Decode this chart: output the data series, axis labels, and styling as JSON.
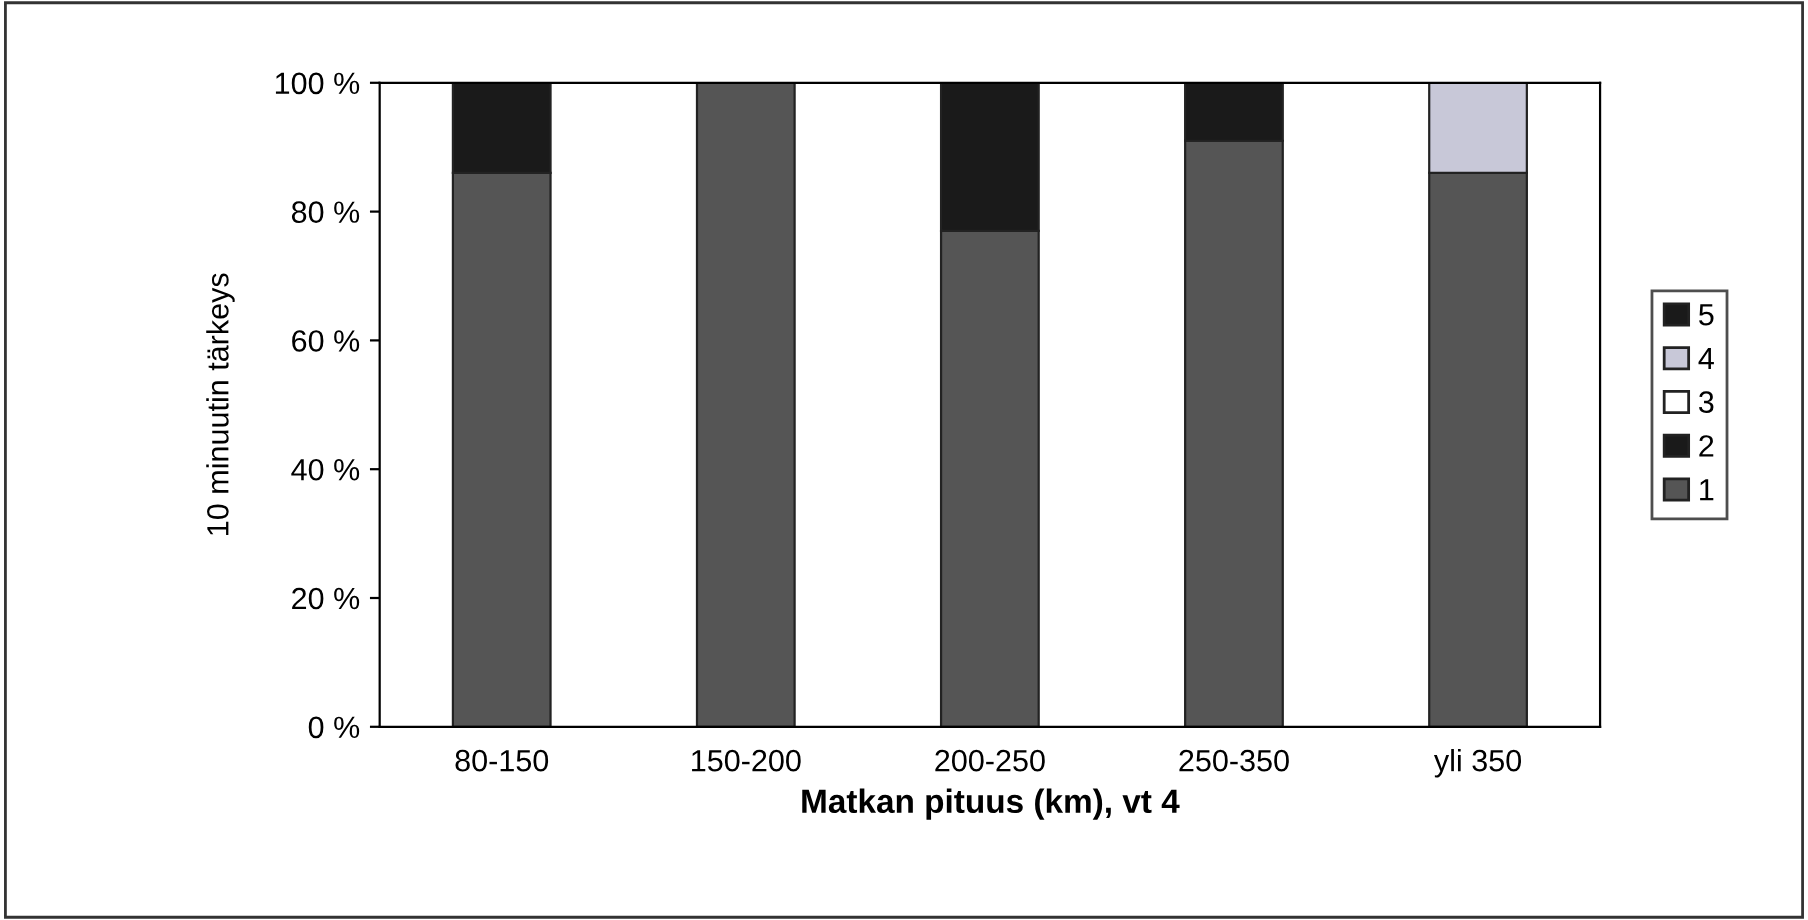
{
  "chart_data": {
    "type": "bar",
    "stacked": true,
    "xlabel": "Matkan pituus (km), vt 4",
    "ylabel": "10 minuutin tärkeys",
    "categories": [
      "80-150",
      "150-200",
      "200-250",
      "250-350",
      "yli 350"
    ],
    "series": [
      {
        "name": "1",
        "color": "#555555",
        "values": [
          86,
          100,
          77,
          91,
          86
        ]
      },
      {
        "name": "2",
        "color": "#1a1a1a",
        "values": [
          14,
          0,
          23,
          9,
          0
        ]
      },
      {
        "name": "3",
        "color": "#ffffff",
        "values": [
          0,
          0,
          0,
          0,
          0
        ]
      },
      {
        "name": "4",
        "color": "#c8c8d8",
        "values": [
          0,
          0,
          0,
          0,
          14
        ]
      },
      {
        "name": "5",
        "color": "#1a1a1a",
        "values": [
          0,
          0,
          0,
          0,
          0
        ]
      }
    ],
    "ylim": [
      0,
      100
    ],
    "yticks": [
      {
        "value": 0,
        "label": "0 %"
      },
      {
        "value": 20,
        "label": "20 %"
      },
      {
        "value": 40,
        "label": "40 %"
      },
      {
        "value": 60,
        "label": "60 %"
      },
      {
        "value": 80,
        "label": "80 %"
      },
      {
        "value": 100,
        "label": "100 %"
      }
    ],
    "grid": false,
    "legend": "right"
  }
}
